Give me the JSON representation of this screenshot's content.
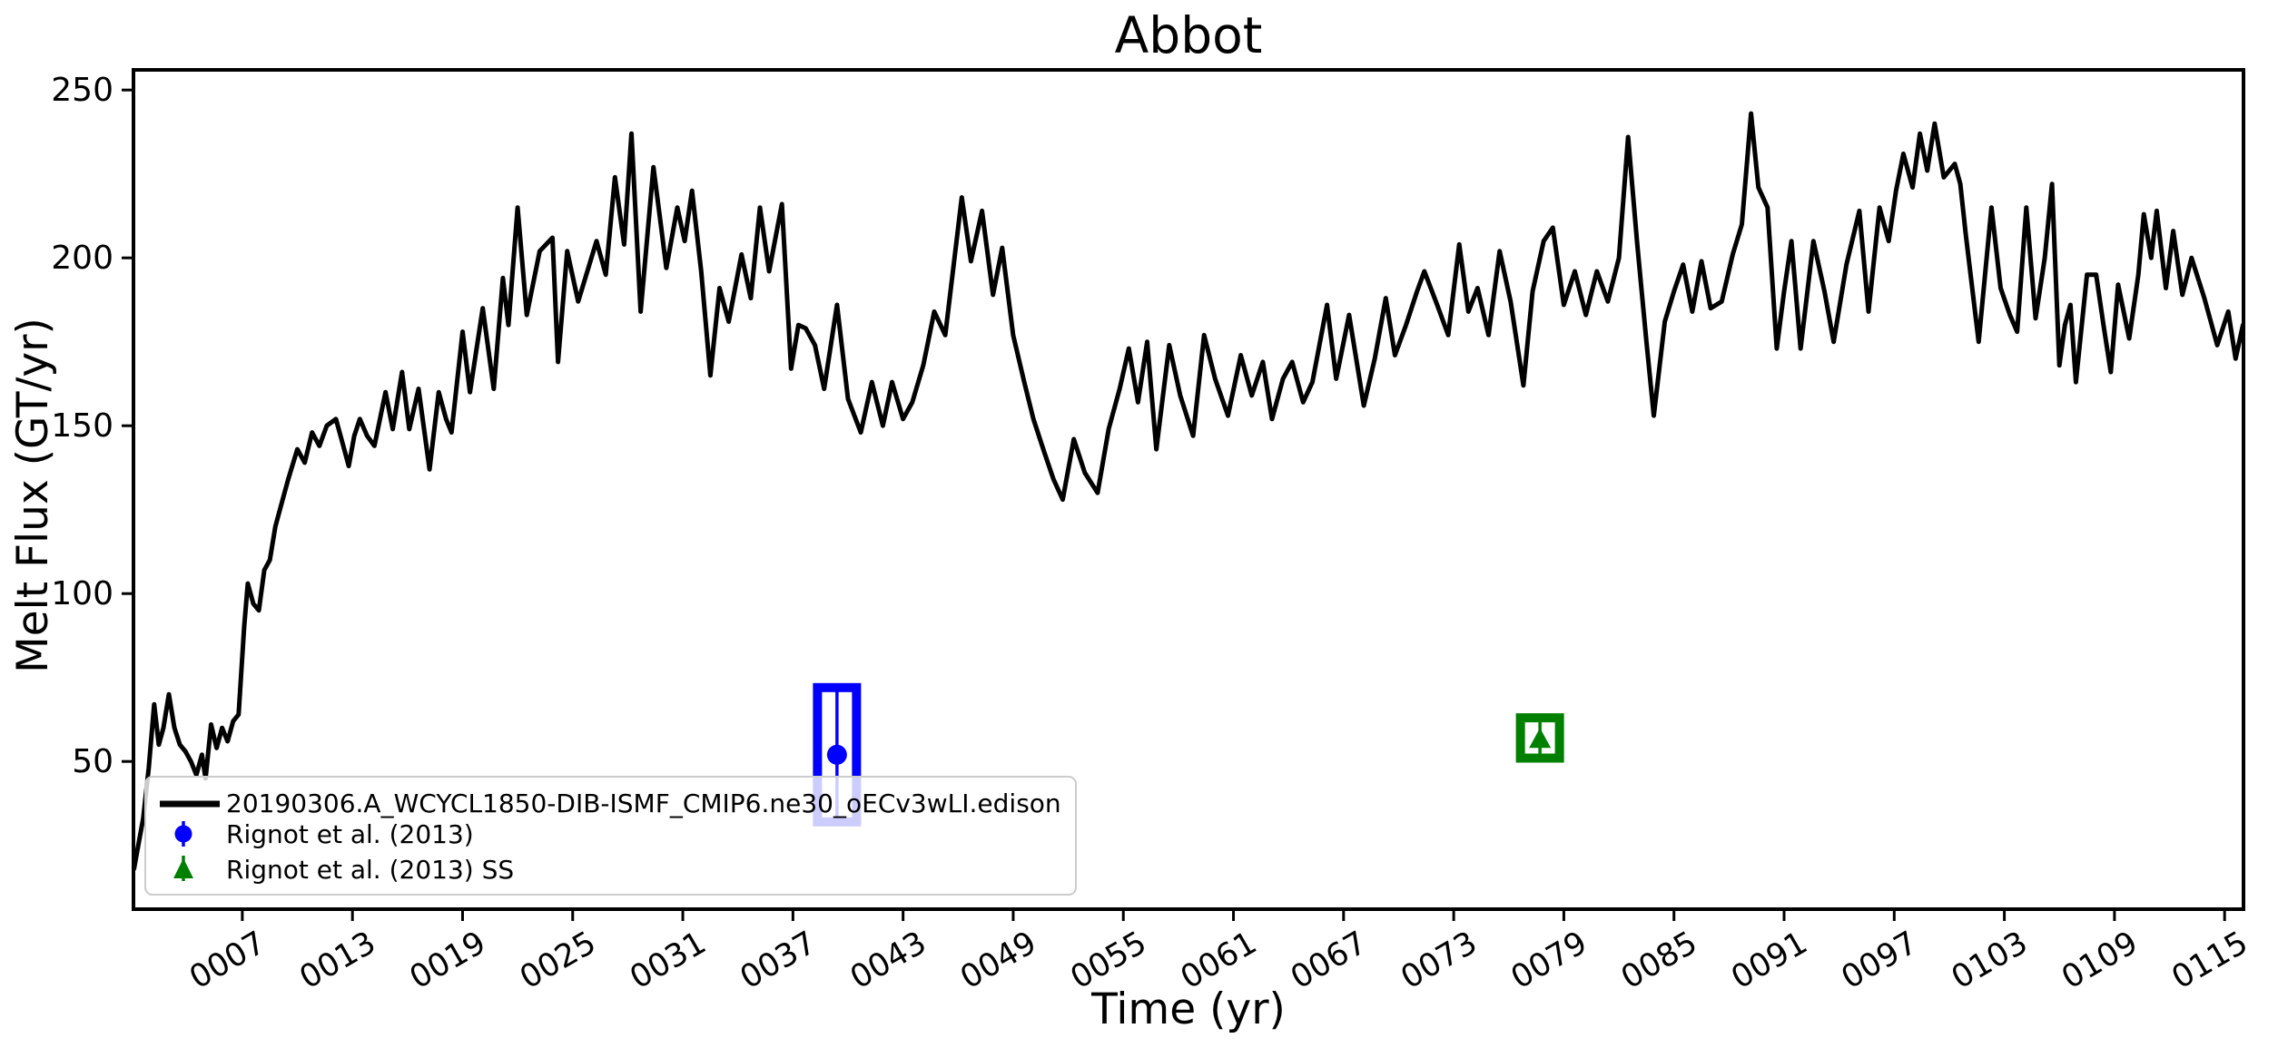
{
  "title": "Abbot",
  "colors": {
    "series_line": "#000000",
    "obs_blue": "#0000ff",
    "obs_green": "#008000",
    "legend_edge": "#cccccc",
    "legend_bg": "rgba(255,255,255,0.8)"
  },
  "chart_data": {
    "type": "line",
    "title": "Abbot",
    "xlabel": "Time (yr)",
    "ylabel": "Melt Flux (GT/yr)",
    "xlim": [
      1.07,
      116.03
    ],
    "ylim": [
      6,
      256
    ],
    "grid": false,
    "legend_position": "lower left",
    "x_ticks": {
      "values": [
        7,
        13,
        19,
        25,
        31,
        37,
        43,
        49,
        55,
        61,
        67,
        73,
        79,
        85,
        91,
        97,
        103,
        109,
        115
      ],
      "labels": [
        "0007",
        "0013",
        "0019",
        "0025",
        "0031",
        "0037",
        "0043",
        "0049",
        "0055",
        "0061",
        "0067",
        "0073",
        "0079",
        "0085",
        "0091",
        "0097",
        "0103",
        "0109",
        "0115"
      ]
    },
    "y_ticks": {
      "values": [
        50,
        100,
        150,
        200,
        250
      ],
      "labels": [
        "50",
        "100",
        "150",
        "200",
        "250"
      ]
    },
    "series": [
      {
        "name": "20190306.A_WCYCL1850-DIB-ISMF_CMIP6.ne30_oECv3wLI.edison",
        "color": "#000000",
        "line_width": 5,
        "points": [
          [
            1.1,
            18
          ],
          [
            1.3,
            24
          ],
          [
            1.6,
            33
          ],
          [
            1.9,
            48
          ],
          [
            2.2,
            67
          ],
          [
            2.45,
            55
          ],
          [
            2.7,
            60
          ],
          [
            3.0,
            70
          ],
          [
            3.3,
            60
          ],
          [
            3.6,
            55
          ],
          [
            3.9,
            53
          ],
          [
            4.2,
            50
          ],
          [
            4.5,
            46
          ],
          [
            4.8,
            52
          ],
          [
            5.0,
            45
          ],
          [
            5.3,
            61
          ],
          [
            5.6,
            54
          ],
          [
            5.9,
            60
          ],
          [
            6.2,
            56
          ],
          [
            6.5,
            62
          ],
          [
            6.8,
            64
          ],
          [
            7.1,
            90
          ],
          [
            7.3,
            103
          ],
          [
            7.6,
            97
          ],
          [
            7.9,
            95
          ],
          [
            8.2,
            107
          ],
          [
            8.5,
            110
          ],
          [
            8.8,
            120
          ],
          [
            9.1,
            126
          ],
          [
            9.5,
            134
          ],
          [
            10.0,
            143
          ],
          [
            10.4,
            139
          ],
          [
            10.8,
            148
          ],
          [
            11.2,
            144
          ],
          [
            11.6,
            150
          ],
          [
            12.1,
            152
          ],
          [
            12.5,
            144
          ],
          [
            12.8,
            138
          ],
          [
            13.1,
            147
          ],
          [
            13.4,
            152
          ],
          [
            13.8,
            147
          ],
          [
            14.2,
            144
          ],
          [
            14.8,
            160
          ],
          [
            15.2,
            149
          ],
          [
            15.7,
            166
          ],
          [
            16.1,
            149
          ],
          [
            16.6,
            161
          ],
          [
            17.2,
            137
          ],
          [
            17.7,
            160
          ],
          [
            18.1,
            152
          ],
          [
            18.4,
            148
          ],
          [
            19.0,
            178
          ],
          [
            19.4,
            160
          ],
          [
            20.1,
            185
          ],
          [
            20.7,
            161
          ],
          [
            21.2,
            194
          ],
          [
            21.5,
            180
          ],
          [
            22.0,
            215
          ],
          [
            22.5,
            183
          ],
          [
            23.2,
            202
          ],
          [
            23.9,
            206
          ],
          [
            24.2,
            169
          ],
          [
            24.7,
            202
          ],
          [
            25.3,
            187
          ],
          [
            25.8,
            196
          ],
          [
            26.3,
            205
          ],
          [
            26.8,
            195
          ],
          [
            27.3,
            224
          ],
          [
            27.8,
            204
          ],
          [
            28.2,
            237
          ],
          [
            28.7,
            184
          ],
          [
            29.4,
            227
          ],
          [
            29.8,
            210
          ],
          [
            30.1,
            197
          ],
          [
            30.7,
            215
          ],
          [
            31.1,
            205
          ],
          [
            31.5,
            220
          ],
          [
            32.0,
            196
          ],
          [
            32.5,
            165
          ],
          [
            33.0,
            191
          ],
          [
            33.5,
            181
          ],
          [
            34.2,
            201
          ],
          [
            34.7,
            188
          ],
          [
            35.2,
            215
          ],
          [
            35.7,
            196
          ],
          [
            36.4,
            216
          ],
          [
            36.9,
            167
          ],
          [
            37.3,
            180
          ],
          [
            37.7,
            179
          ],
          [
            38.2,
            174
          ],
          [
            38.7,
            161
          ],
          [
            39.4,
            186
          ],
          [
            40.0,
            158
          ],
          [
            40.7,
            148
          ],
          [
            41.3,
            163
          ],
          [
            41.9,
            150
          ],
          [
            42.4,
            163
          ],
          [
            43.0,
            152
          ],
          [
            43.5,
            157
          ],
          [
            44.1,
            168
          ],
          [
            44.7,
            184
          ],
          [
            45.3,
            177
          ],
          [
            46.2,
            218
          ],
          [
            46.7,
            199
          ],
          [
            47.3,
            214
          ],
          [
            47.9,
            189
          ],
          [
            48.4,
            203
          ],
          [
            49.0,
            177
          ],
          [
            49.6,
            163
          ],
          [
            50.1,
            152
          ],
          [
            50.7,
            142
          ],
          [
            51.2,
            134
          ],
          [
            51.7,
            128
          ],
          [
            52.3,
            146
          ],
          [
            52.9,
            136
          ],
          [
            53.6,
            130
          ],
          [
            54.2,
            149
          ],
          [
            54.8,
            161
          ],
          [
            55.3,
            173
          ],
          [
            55.8,
            157
          ],
          [
            56.3,
            175
          ],
          [
            56.8,
            143
          ],
          [
            57.5,
            174
          ],
          [
            58.1,
            159
          ],
          [
            58.8,
            147
          ],
          [
            59.4,
            177
          ],
          [
            60.0,
            164
          ],
          [
            60.7,
            153
          ],
          [
            61.4,
            171
          ],
          [
            62.0,
            159
          ],
          [
            62.6,
            169
          ],
          [
            63.1,
            152
          ],
          [
            63.7,
            164
          ],
          [
            64.2,
            169
          ],
          [
            64.8,
            157
          ],
          [
            65.3,
            163
          ],
          [
            66.1,
            186
          ],
          [
            66.6,
            164
          ],
          [
            67.3,
            183
          ],
          [
            68.1,
            156
          ],
          [
            68.7,
            170
          ],
          [
            69.3,
            188
          ],
          [
            69.8,
            171
          ],
          [
            70.4,
            180
          ],
          [
            71.0,
            190
          ],
          [
            71.4,
            196
          ],
          [
            72.1,
            186
          ],
          [
            72.7,
            177
          ],
          [
            73.3,
            204
          ],
          [
            73.8,
            184
          ],
          [
            74.3,
            191
          ],
          [
            74.9,
            177
          ],
          [
            75.5,
            202
          ],
          [
            76.1,
            187
          ],
          [
            76.8,
            162
          ],
          [
            77.3,
            190
          ],
          [
            77.9,
            205
          ],
          [
            78.4,
            209
          ],
          [
            79.0,
            186
          ],
          [
            79.6,
            196
          ],
          [
            80.2,
            183
          ],
          [
            80.8,
            196
          ],
          [
            81.4,
            187
          ],
          [
            82.0,
            200
          ],
          [
            82.5,
            236
          ],
          [
            83.0,
            204
          ],
          [
            83.5,
            175
          ],
          [
            83.9,
            153
          ],
          [
            84.5,
            181
          ],
          [
            85.0,
            190
          ],
          [
            85.5,
            198
          ],
          [
            86.0,
            184
          ],
          [
            86.5,
            199
          ],
          [
            87.0,
            185
          ],
          [
            87.6,
            187
          ],
          [
            88.2,
            201
          ],
          [
            88.7,
            210
          ],
          [
            89.2,
            243
          ],
          [
            89.6,
            221
          ],
          [
            90.1,
            215
          ],
          [
            90.6,
            173
          ],
          [
            91.0,
            190
          ],
          [
            91.4,
            205
          ],
          [
            91.9,
            173
          ],
          [
            92.6,
            205
          ],
          [
            93.2,
            190
          ],
          [
            93.7,
            175
          ],
          [
            94.4,
            198
          ],
          [
            95.1,
            214
          ],
          [
            95.6,
            184
          ],
          [
            96.2,
            215
          ],
          [
            96.7,
            205
          ],
          [
            97.1,
            220
          ],
          [
            97.5,
            231
          ],
          [
            98.0,
            221
          ],
          [
            98.4,
            237
          ],
          [
            98.8,
            226
          ],
          [
            99.2,
            240
          ],
          [
            99.7,
            224
          ],
          [
            100.3,
            228
          ],
          [
            100.6,
            222
          ],
          [
            100.9,
            207
          ],
          [
            101.6,
            175
          ],
          [
            102.3,
            215
          ],
          [
            102.8,
            191
          ],
          [
            103.3,
            183
          ],
          [
            103.7,
            178
          ],
          [
            104.2,
            215
          ],
          [
            104.7,
            182
          ],
          [
            105.2,
            200
          ],
          [
            105.6,
            222
          ],
          [
            106.0,
            168
          ],
          [
            106.3,
            180
          ],
          [
            106.6,
            186
          ],
          [
            106.9,
            163
          ],
          [
            107.5,
            195
          ],
          [
            108.0,
            195
          ],
          [
            108.4,
            180
          ],
          [
            108.8,
            166
          ],
          [
            109.2,
            192
          ],
          [
            109.8,
            176
          ],
          [
            110.3,
            195
          ],
          [
            110.6,
            213
          ],
          [
            111.0,
            200
          ],
          [
            111.3,
            214
          ],
          [
            111.8,
            191
          ],
          [
            112.2,
            208
          ],
          [
            112.7,
            189
          ],
          [
            113.2,
            200
          ],
          [
            113.9,
            188
          ],
          [
            114.6,
            174
          ],
          [
            115.2,
            184
          ],
          [
            115.6,
            170
          ],
          [
            116.0,
            180
          ]
        ]
      }
    ],
    "observations": [
      {
        "name": "Rignot et al. (2013)",
        "color": "#0000ff",
        "marker": "circle",
        "x": 39.4,
        "y": 52,
        "y_range": [
          32,
          72
        ]
      },
      {
        "name": "Rignot et al. (2013) SS",
        "color": "#008000",
        "marker": "triangle-up",
        "x": 77.7,
        "y": 57,
        "y_range": [
          51,
          63
        ]
      }
    ]
  },
  "legend": {
    "entries": [
      {
        "label": "20190306.A_WCYCL1850-DIB-ISMF_CMIP6.ne30_oECv3wLI.edison",
        "swatch": "line"
      },
      {
        "label": "Rignot et al. (2013)",
        "swatch": "errorbar-circle"
      },
      {
        "label": "Rignot et al. (2013) SS",
        "swatch": "errorbar-triangle"
      }
    ]
  }
}
